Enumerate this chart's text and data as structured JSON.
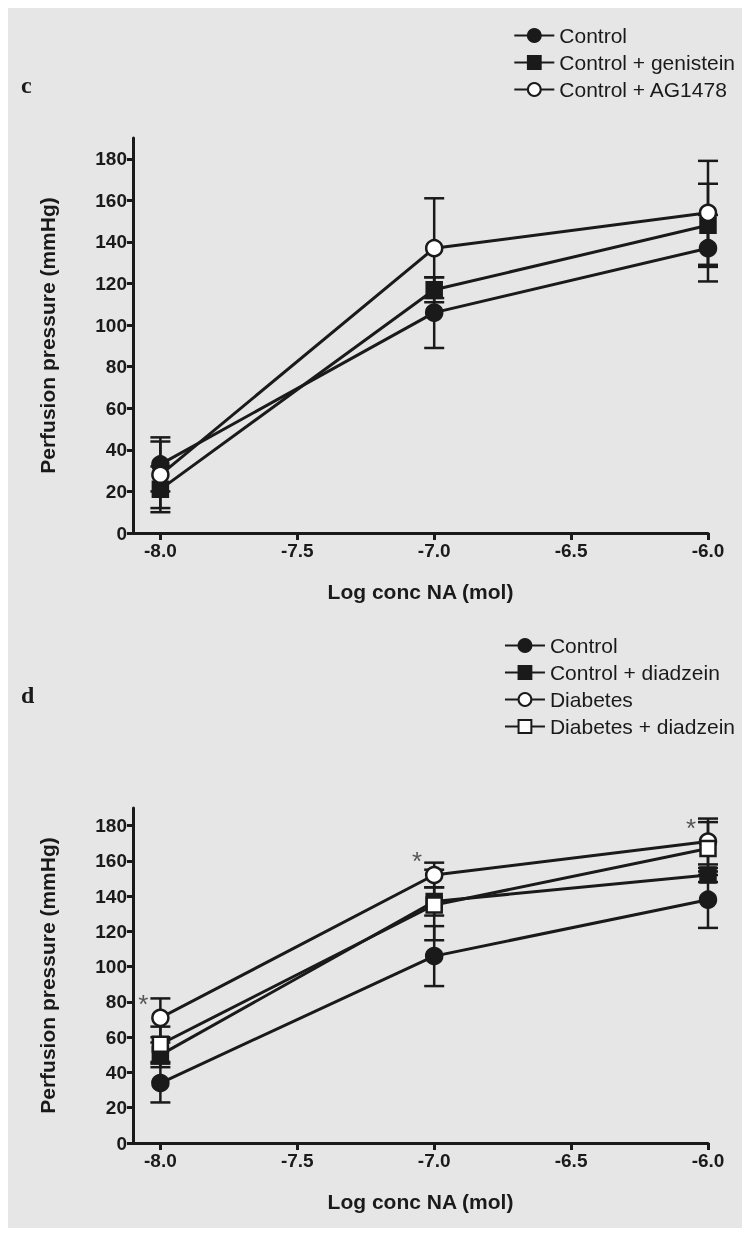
{
  "chart_data": [
    {
      "type": "line",
      "title": "c",
      "xlabel": "Log conc NA (mol)",
      "ylabel": "Perfusion pressure (mmHg)",
      "x": [
        -8,
        -7,
        -6
      ],
      "xlim": [
        -8.1,
        -6.0
      ],
      "xticks": [
        {
          "value": -8,
          "label": "-8.0"
        },
        {
          "value": -7.5,
          "label": "-7.5"
        },
        {
          "value": -7,
          "label": "-7.0"
        },
        {
          "value": -6.5,
          "label": "-6.5"
        },
        {
          "value": -6,
          "label": "-6.0"
        }
      ],
      "ylim": [
        0,
        190
      ],
      "yticks": [
        0,
        20,
        40,
        60,
        80,
        100,
        120,
        140,
        160,
        180
      ],
      "grid": false,
      "legend": "top right",
      "line_style": "solid",
      "series": [
        {
          "name": "Control",
          "color": "#1a1a1a",
          "marker": "circle",
          "values": [
            33,
            106,
            137
          ],
          "errors": [
            13,
            17,
            16
          ]
        },
        {
          "name": "Control + genistein",
          "color": "#1a1a1a",
          "marker": "square",
          "values": [
            21,
            117,
            148
          ],
          "errors": [
            11,
            6,
            20
          ]
        },
        {
          "name": "Control + AG1478",
          "color": "#1a1a1a",
          "marker": "circle-open",
          "values": [
            28,
            137,
            154
          ],
          "errors": [
            16,
            24,
            25
          ]
        }
      ]
    },
    {
      "type": "line",
      "title": "d",
      "xlabel": "Log conc NA (mol)",
      "ylabel": "Perfusion pressure (mmHg)",
      "x": [
        -8,
        -7,
        -6
      ],
      "xlim": [
        -8.1,
        -6.0
      ],
      "xticks": [
        {
          "value": -8,
          "label": "-8.0"
        },
        {
          "value": -7.5,
          "label": "-7.5"
        },
        {
          "value": -7,
          "label": "-7.0"
        },
        {
          "value": -6.5,
          "label": "-6.5"
        },
        {
          "value": -6,
          "label": "-6.0"
        }
      ],
      "ylim": [
        0,
        190
      ],
      "yticks": [
        0,
        20,
        40,
        60,
        80,
        100,
        120,
        140,
        160,
        180
      ],
      "grid": false,
      "legend": "top right",
      "line_style": "solid",
      "annotations": [
        {
          "text": "*",
          "x": -8,
          "y": 71
        },
        {
          "text": "*",
          "x": -7,
          "y": 152
        },
        {
          "text": "*",
          "x": -6,
          "y": 171
        }
      ],
      "series": [
        {
          "name": "Control",
          "color": "#1a1a1a",
          "marker": "circle",
          "values": [
            34,
            106,
            138
          ],
          "errors": [
            11,
            17,
            16
          ]
        },
        {
          "name": "Control + diadzein",
          "color": "#1a1a1a",
          "marker": "square",
          "values": [
            50,
            137,
            152
          ],
          "errors": [
            7,
            8,
            4
          ]
        },
        {
          "name": "Diabetes",
          "color": "#1a1a1a",
          "marker": "circle-open",
          "values": [
            71,
            152,
            171
          ],
          "errors": [
            11,
            7,
            13
          ]
        },
        {
          "name": "Diabetes + diadzein",
          "color": "#1a1a1a",
          "marker": "square-open",
          "values": [
            56,
            135,
            167
          ],
          "errors": [
            10,
            20,
            15
          ]
        }
      ]
    }
  ]
}
